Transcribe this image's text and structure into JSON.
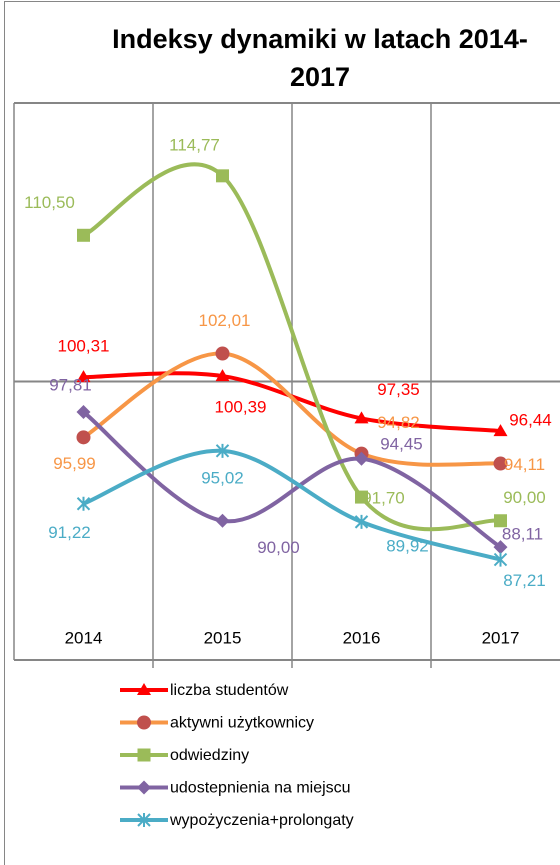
{
  "chart_data": {
    "type": "line",
    "title": "Indeksy dynamiki w latach 2014-2017",
    "categories": [
      "2014",
      "2015",
      "2016",
      "2017"
    ],
    "ylim": [
      80,
      120
    ],
    "yticks": [
      80,
      100,
      120
    ],
    "grid": true,
    "smooth": true,
    "legend": "bottom",
    "series": [
      {
        "name": "liczba studentów",
        "color": "#ff0000",
        "marker": "triangle",
        "values": [
          100.31,
          100.39,
          97.35,
          96.44
        ],
        "value_labels": [
          "100,31",
          "100,39",
          "97,35",
          "96,44"
        ]
      },
      {
        "name": "aktywni użytkownicy",
        "color": "#f79646",
        "marker": "circle",
        "values": [
          95.99,
          102.01,
          94.82,
          94.11
        ],
        "value_labels": [
          "95,99",
          "102,01",
          "94,82",
          "94,11"
        ]
      },
      {
        "name": "odwiedziny",
        "color": "#9bbb59",
        "marker": "square",
        "values": [
          110.5,
          114.77,
          91.7,
          90.0
        ],
        "value_labels": [
          "110,50",
          "114,77",
          "91,70",
          "90,00"
        ]
      },
      {
        "name": "udostepnienia na miejscu",
        "color": "#8064a2",
        "marker": "diamond",
        "values": [
          97.81,
          90.0,
          94.45,
          88.11
        ],
        "value_labels": [
          "97,81",
          "90,00",
          "94,45",
          "88,11"
        ]
      },
      {
        "name": "wypożyczenia+prolongaty",
        "color": "#4bacc6",
        "marker": "star",
        "values": [
          91.22,
          95.02,
          89.92,
          87.21
        ],
        "value_labels": [
          "91,22",
          "95,02",
          "89,92",
          "87,21"
        ]
      }
    ]
  }
}
